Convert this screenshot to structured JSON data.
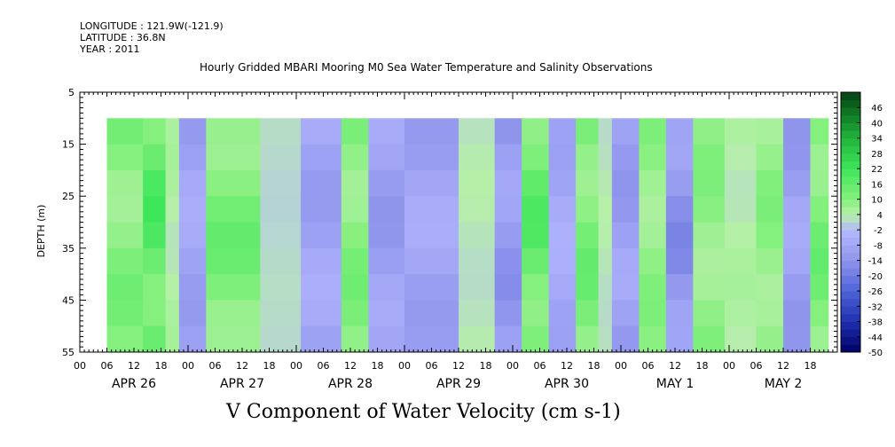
{
  "header": {
    "longitude": "LONGITUDE : 121.9W(-121.9)",
    "latitude": "LATITUDE : 36.8N",
    "year": "YEAR : 2011"
  },
  "chart_data": {
    "type": "heatmap",
    "title": "Hourly Gridded MBARI Mooring M0 Sea Water Temperature and Salinity Observations",
    "xlabel": "V Component of Water Velocity (cm s-1)",
    "ylabel": "DEPTH (m)",
    "ylim": [
      5,
      55
    ],
    "y_reversed": true,
    "y_ticks": [
      5,
      15,
      25,
      35,
      45,
      55
    ],
    "x_hour_labels": [
      "00",
      "06",
      "12",
      "18",
      "00",
      "06",
      "12",
      "18",
      "00",
      "06",
      "12",
      "18",
      "00",
      "06",
      "12",
      "18",
      "00",
      "06",
      "12",
      "18",
      "00",
      "06",
      "12",
      "18",
      "00",
      "06",
      "12",
      "18"
    ],
    "x_day_labels": [
      "APR 26",
      "APR 27",
      "APR 28",
      "APR 29",
      "APR 30",
      "MAY  1",
      "MAY  2"
    ],
    "x_range_hours": [
      0,
      168
    ],
    "data_start_hour": 6,
    "data_end_hour": 166,
    "depth_range": [
      10,
      55
    ],
    "colorbar_labels": [
      "46",
      "40",
      "34",
      "28",
      "22",
      "16",
      "10",
      "4",
      "-2",
      "-8",
      "-14",
      "-20",
      "-26",
      "-32",
      "-38",
      "-44",
      "-50"
    ],
    "colorbar_range": [
      -50,
      52
    ],
    "bands_hours_signed": [
      {
        "start": 6,
        "end": 14,
        "value": 14
      },
      {
        "start": 14,
        "end": 19,
        "value": 22
      },
      {
        "start": 19,
        "end": 22,
        "value": 6
      },
      {
        "start": 22,
        "end": 28,
        "value": -12
      },
      {
        "start": 28,
        "end": 40,
        "value": 16
      },
      {
        "start": 40,
        "end": 49,
        "value": 2
      },
      {
        "start": 49,
        "end": 58,
        "value": -12
      },
      {
        "start": 58,
        "end": 64,
        "value": 14
      },
      {
        "start": 64,
        "end": 72,
        "value": -14
      },
      {
        "start": 72,
        "end": 84,
        "value": -12
      },
      {
        "start": 84,
        "end": 92,
        "value": 4
      },
      {
        "start": 92,
        "end": 98,
        "value": -16
      },
      {
        "start": 98,
        "end": 104,
        "value": 20
      },
      {
        "start": 104,
        "end": 110,
        "value": -10
      },
      {
        "start": 110,
        "end": 115,
        "value": 16
      },
      {
        "start": 115,
        "end": 118,
        "value": 4
      },
      {
        "start": 118,
        "end": 124,
        "value": -14
      },
      {
        "start": 124,
        "end": 130,
        "value": 12
      },
      {
        "start": 130,
        "end": 136,
        "value": -18
      },
      {
        "start": 136,
        "end": 143,
        "value": 12
      },
      {
        "start": 143,
        "end": 150,
        "value": 6
      },
      {
        "start": 150,
        "end": 156,
        "value": 12
      },
      {
        "start": 156,
        "end": 162,
        "value": -14
      },
      {
        "start": 162,
        "end": 166,
        "value": 16
      }
    ],
    "colormap": [
      {
        "value": -50,
        "color": "#000066"
      },
      {
        "value": -38,
        "color": "#1f2fb0"
      },
      {
        "value": -26,
        "color": "#4f63d8"
      },
      {
        "value": -14,
        "color": "#8f94ec"
      },
      {
        "value": -2,
        "color": "#b5b8ff"
      },
      {
        "value": 4,
        "color": "#b6f0a8"
      },
      {
        "value": 10,
        "color": "#87f07f"
      },
      {
        "value": 22,
        "color": "#3ee65a"
      },
      {
        "value": 34,
        "color": "#21b43b"
      },
      {
        "value": 46,
        "color": "#0c6a20"
      },
      {
        "value": 52,
        "color": "#083f15"
      }
    ]
  }
}
